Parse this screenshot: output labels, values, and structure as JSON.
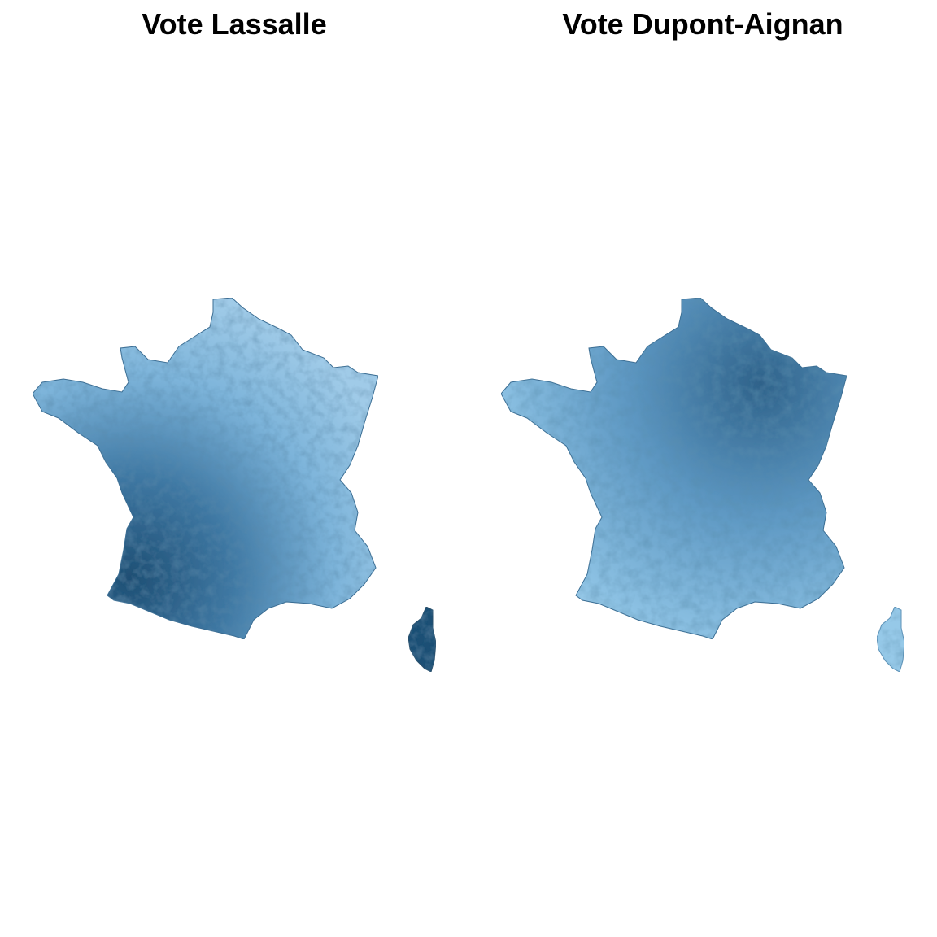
{
  "panels": [
    {
      "title": "Vote Lassalle",
      "fill_low": "#a9d4ee",
      "fill_mid": "#5d9ac4",
      "fill_high": "#1f4f74",
      "pattern": "south-west-dark"
    },
    {
      "title": "Vote Dupont-Aignan",
      "fill_low": "#a9d4ee",
      "fill_mid": "#6aa4cc",
      "fill_high": "#24567c",
      "pattern": "north-east-dark"
    }
  ],
  "colors": {
    "background": "#ffffff",
    "title_text": "#000000",
    "border": "#2b4f6b"
  }
}
